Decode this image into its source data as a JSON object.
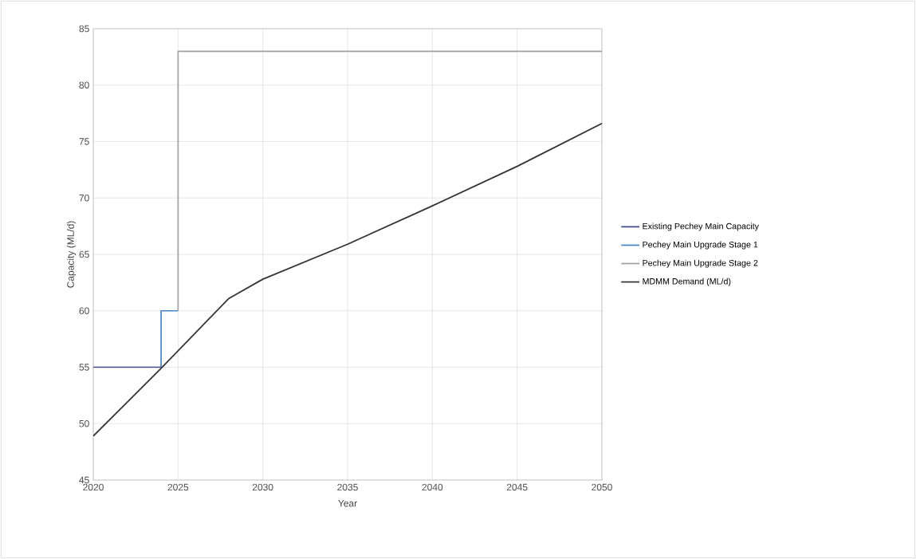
{
  "chart_data": {
    "type": "line",
    "xlabel": "Year",
    "ylabel": "Capacity (ML/d)",
    "xlim": [
      2020,
      2050
    ],
    "xticks": [
      2020,
      2025,
      2030,
      2035,
      2040,
      2045,
      2050
    ],
    "ylim": [
      45,
      85
    ],
    "yticks": [
      45,
      50,
      55,
      60,
      65,
      70,
      75,
      80,
      85
    ],
    "grid": true,
    "legend": "right",
    "marker": "none",
    "line_style": "solid",
    "series": [
      {
        "name": "Existing Pechey Main Capacity",
        "color": "#3c4a8c",
        "x": [
          2020,
          2024
        ],
        "values": [
          55,
          55
        ]
      },
      {
        "name": "Pechey Main Upgrade Stage 1",
        "color": "#4a86c5",
        "x": [
          2024,
          2024,
          2025
        ],
        "values": [
          55,
          60,
          60
        ]
      },
      {
        "name": "Pechey Main Upgrade Stage 2",
        "color": "#a0a0a0",
        "x": [
          2025,
          2025,
          2050
        ],
        "values": [
          60,
          83,
          83
        ]
      },
      {
        "name": "MDMM Demand (ML/d)",
        "color": "#333333",
        "x": [
          2020,
          2024,
          2028,
          2030,
          2035,
          2040,
          2045,
          2050
        ],
        "values": [
          48.9,
          54.9,
          61.1,
          62.8,
          65.9,
          69.3,
          72.8,
          76.6
        ]
      }
    ]
  }
}
